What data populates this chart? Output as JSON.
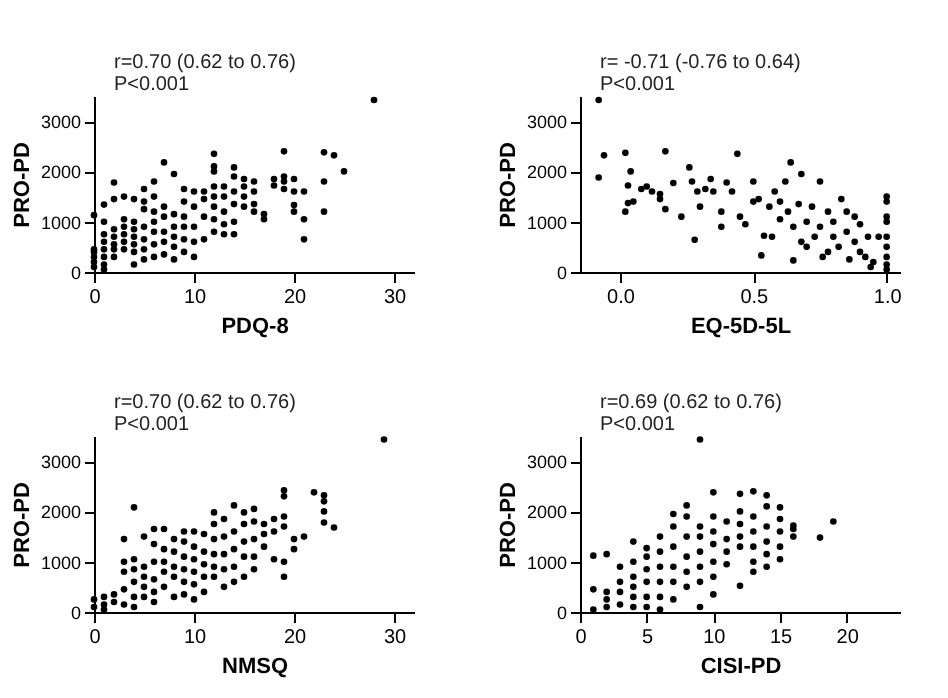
{
  "chart_data": [
    {
      "type": "scatter",
      "xlabel": "PDQ-8",
      "ylabel": "PRO-PD",
      "annotations": [
        "r=0.70 (0.62 to 0.76)",
        "P<0.001"
      ],
      "xlim": [
        0,
        32
      ],
      "xticks": [
        0,
        10,
        20,
        30
      ],
      "ylim": [
        0,
        3500
      ],
      "yticks": [
        0,
        1000,
        2000,
        3000
      ],
      "grid": false,
      "marker": "circle",
      "series": [
        {
          "color": "#000000",
          "x": [
            0,
            0,
            0,
            0,
            0,
            0,
            1,
            1,
            1,
            1,
            1,
            1,
            1,
            1,
            2,
            2,
            2,
            2,
            2,
            2,
            2,
            3,
            3,
            3,
            3,
            3,
            3,
            4,
            4,
            4,
            4,
            4,
            4,
            4,
            5,
            5,
            5,
            5,
            5,
            5,
            5,
            6,
            6,
            6,
            6,
            6,
            6,
            6,
            7,
            7,
            7,
            7,
            7,
            7,
            8,
            8,
            8,
            8,
            8,
            8,
            9,
            9,
            9,
            9,
            9,
            9,
            10,
            10,
            10,
            10,
            10,
            11,
            11,
            11,
            11,
            12,
            12,
            12,
            12,
            12,
            12,
            12,
            12,
            13,
            13,
            13,
            13,
            13,
            14,
            14,
            14,
            14,
            14,
            14,
            15,
            15,
            15,
            15,
            16,
            16,
            16,
            16,
            17,
            17,
            18,
            18,
            19,
            19,
            19,
            19,
            20,
            20,
            20,
            20,
            21,
            21,
            21,
            23,
            23,
            23,
            24,
            25,
            28
          ],
          "values": [
            100,
            200,
            300,
            400,
            450,
            1130,
            50,
            150,
            300,
            450,
            600,
            750,
            1000,
            1340,
            300,
            450,
            550,
            700,
            850,
            1450,
            1780,
            450,
            600,
            750,
            900,
            1050,
            1500,
            150,
            400,
            550,
            700,
            850,
            1000,
            1450,
            250,
            450,
            650,
            900,
            1250,
            1400,
            1650,
            300,
            550,
            800,
            1000,
            1200,
            1500,
            1800,
            350,
            600,
            800,
            1100,
            1300,
            2180,
            250,
            500,
            700,
            900,
            1150,
            1950,
            400,
            650,
            900,
            1100,
            1400,
            1650,
            300,
            600,
            900,
            1300,
            1600,
            650,
            1100,
            1450,
            1600,
            800,
            1050,
            1300,
            1500,
            1700,
            2000,
            2100,
            2350,
            750,
            950,
            1200,
            1500,
            1700,
            750,
            1000,
            1350,
            1600,
            1900,
            2080,
            1300,
            1500,
            1700,
            1850,
            1200,
            1350,
            1600,
            1800,
            1050,
            1150,
            1720,
            1850,
            1650,
            1800,
            1900,
            2400,
            1200,
            1330,
            1600,
            1850,
            650,
            1050,
            1600,
            1200,
            1800,
            2380,
            2320,
            2000,
            3420
          ]
        }
      ]
    },
    {
      "type": "scatter",
      "xlabel": "EQ-5D-5L",
      "ylabel": "PRO-PD",
      "annotations": [
        "r= -0.71 (-0.76 to 0.64)",
        "P<0.001"
      ],
      "xlim": [
        -0.15,
        1.05
      ],
      "xticks": [
        {
          "value": 0,
          "label": "0.0"
        },
        {
          "value": 0.5,
          "label": "0.5"
        },
        {
          "value": 1,
          "label": "1.0"
        }
      ],
      "ylim": [
        0,
        3500
      ],
      "yticks": [
        0,
        1000,
        2000,
        3000
      ],
      "grid": false,
      "marker": "circle",
      "series": [
        {
          "color": "#000000",
          "x": [
            -0.08,
            -0.08,
            -0.06,
            0.02,
            0.02,
            0.03,
            0.03,
            0.04,
            0.05,
            0.08,
            0.1,
            0.12,
            0.15,
            0.15,
            0.17,
            0.17,
            0.2,
            0.23,
            0.26,
            0.27,
            0.28,
            0.29,
            0.3,
            0.32,
            0.34,
            0.35,
            0.38,
            0.38,
            0.4,
            0.42,
            0.44,
            0.45,
            0.47,
            0.5,
            0.5,
            0.52,
            0.53,
            0.54,
            0.56,
            0.58,
            0.6,
            0.62,
            0.63,
            0.64,
            0.65,
            0.65,
            0.67,
            0.68,
            0.7,
            0.7,
            0.72,
            0.73,
            0.75,
            0.75,
            0.76,
            0.78,
            0.8,
            0.8,
            0.82,
            0.83,
            0.85,
            0.86,
            0.88,
            0.88,
            0.9,
            0.9,
            0.92,
            0.93,
            0.94,
            0.95,
            0.97,
            1,
            1,
            1,
            1,
            1,
            1,
            1,
            1,
            1,
            0.6,
            0.57,
            0.68,
            0.85,
            0.78
          ],
          "values": [
            3420,
            1880,
            2320,
            2370,
            1200,
            1720,
            1370,
            2000,
            1400,
            1650,
            1700,
            1600,
            1550,
            1450,
            2400,
            1250,
            1770,
            1100,
            2080,
            1800,
            640,
            1600,
            1300,
            1650,
            1850,
            1600,
            1200,
            900,
            1780,
            1600,
            2350,
            1100,
            950,
            1800,
            1400,
            1450,
            330,
            720,
            1300,
            1600,
            1400,
            1800,
            1200,
            2180,
            900,
            230,
            1350,
            1950,
            1000,
            500,
            1300,
            700,
            1800,
            900,
            300,
            1200,
            700,
            1000,
            500,
            1450,
            800,
            250,
            1100,
            600,
            950,
            400,
            300,
            700,
            100,
            200,
            700,
            1500,
            1400,
            1100,
            1000,
            700,
            500,
            300,
            150,
            50,
            1050,
            700,
            600,
            1200,
            400
          ]
        }
      ]
    },
    {
      "type": "scatter",
      "xlabel": "NMSQ",
      "ylabel": "PRO-PD",
      "annotations": [
        "r=0.70 (0.62 to 0.76)",
        "P<0.001"
      ],
      "xlim": [
        0,
        32
      ],
      "xticks": [
        0,
        10,
        20,
        30
      ],
      "ylim": [
        0,
        3500
      ],
      "yticks": [
        0,
        1000,
        2000,
        3000
      ],
      "grid": false,
      "marker": "circle",
      "series": [
        {
          "color": "#000000",
          "x": [
            0,
            0,
            1,
            1,
            1,
            2,
            2,
            3,
            3,
            3,
            3,
            3,
            4,
            4,
            4,
            4,
            4,
            4,
            5,
            5,
            5,
            5,
            5,
            6,
            6,
            6,
            6,
            6,
            6,
            7,
            7,
            7,
            7,
            7,
            8,
            8,
            8,
            8,
            8,
            9,
            9,
            9,
            9,
            9,
            9,
            10,
            10,
            10,
            10,
            10,
            10,
            11,
            11,
            11,
            11,
            11,
            12,
            12,
            12,
            12,
            12,
            12,
            13,
            13,
            13,
            13,
            13,
            14,
            14,
            14,
            14,
            14,
            15,
            15,
            15,
            15,
            15,
            16,
            16,
            16,
            16,
            16,
            17,
            17,
            17,
            18,
            18,
            18,
            19,
            19,
            19,
            19,
            19,
            19,
            20,
            20,
            21,
            22,
            23,
            23,
            23,
            23,
            24,
            29
          ],
          "values": [
            100,
            250,
            50,
            150,
            300,
            200,
            350,
            150,
            450,
            800,
            1000,
            1450,
            100,
            300,
            600,
            850,
            1050,
            2080,
            300,
            500,
            700,
            900,
            1500,
            200,
            400,
            650,
            1000,
            1350,
            1650,
            500,
            800,
            1000,
            1250,
            1650,
            300,
            700,
            900,
            1200,
            1450,
            350,
            600,
            850,
            1100,
            1400,
            1600,
            250,
            550,
            800,
            1050,
            1300,
            1600,
            400,
            700,
            950,
            1200,
            1550,
            700,
            900,
            1150,
            1450,
            1750,
            1980,
            500,
            850,
            1150,
            1500,
            1850,
            600,
            900,
            1250,
            1600,
            2120,
            700,
            1100,
            1400,
            1750,
            1980,
            850,
            1100,
            1450,
            1800,
            2050,
            1300,
            1550,
            1750,
            1050,
            1600,
            1850,
            700,
            1000,
            1700,
            1900,
            2300,
            2420,
            1250,
            1450,
            1500,
            2380,
            1780,
            2000,
            2200,
            2320,
            1680,
            3430
          ]
        }
      ]
    },
    {
      "type": "scatter",
      "xlabel": "CISI-PD",
      "ylabel": "PRO-PD",
      "annotations": [
        "r=0.69 (0.62 to 0.76)",
        "P<0.001"
      ],
      "xlim": [
        0,
        24
      ],
      "xticks": [
        0,
        5,
        10,
        15,
        20
      ],
      "ylim": [
        0,
        3500
      ],
      "yticks": [
        0,
        1000,
        2000,
        3000
      ],
      "grid": false,
      "marker": "circle",
      "series": [
        {
          "color": "#000000",
          "x": [
            1,
            1,
            1,
            2,
            2,
            2,
            2,
            3,
            3,
            3,
            3,
            4,
            4,
            4,
            4,
            4,
            4,
            5,
            5,
            5,
            5,
            5,
            5,
            6,
            6,
            6,
            6,
            6,
            6,
            7,
            7,
            7,
            7,
            7,
            7,
            8,
            8,
            8,
            8,
            8,
            8,
            9,
            9,
            9,
            9,
            9,
            9,
            9,
            10,
            10,
            10,
            10,
            10,
            10,
            10,
            11,
            11,
            11,
            11,
            12,
            12,
            12,
            12,
            12,
            12,
            13,
            13,
            13,
            13,
            13,
            13,
            14,
            14,
            14,
            14,
            14,
            14,
            15,
            15,
            15,
            15,
            15,
            16,
            16,
            16,
            18,
            19
          ],
          "values": [
            50,
            450,
            1120,
            100,
            250,
            400,
            1150,
            150,
            400,
            600,
            900,
            100,
            300,
            500,
            700,
            1000,
            1400,
            100,
            300,
            600,
            850,
            1100,
            1270,
            50,
            300,
            600,
            900,
            1200,
            1500,
            250,
            600,
            900,
            1300,
            1700,
            1950,
            500,
            800,
            1100,
            1500,
            1900,
            2120,
            100,
            600,
            900,
            1200,
            1500,
            1700,
            3430,
            350,
            700,
            1000,
            1350,
            1600,
            1900,
            2380,
            950,
            1200,
            1450,
            1800,
            520,
            1300,
            1500,
            1750,
            2000,
            2350,
            800,
            1000,
            1300,
            1600,
            1900,
            2400,
            900,
            1150,
            1400,
            1700,
            2100,
            2320,
            1050,
            1300,
            1600,
            1850,
            2080,
            1500,
            1650,
            1720,
            1480,
            1800
          ]
        }
      ]
    }
  ]
}
